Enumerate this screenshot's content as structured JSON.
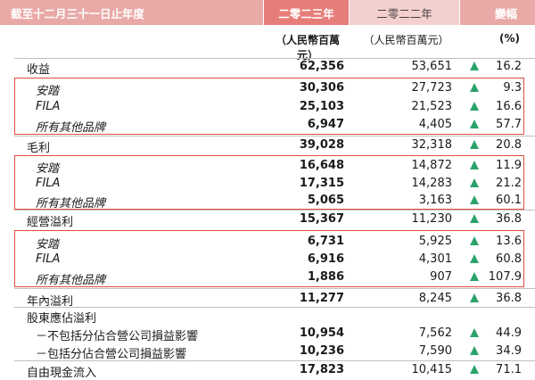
{
  "header": {
    "period_label": "截至十二月三十一日止年度",
    "col_2023": "二零二三年",
    "col_2022": "二零二二年",
    "col_change": "變幅"
  },
  "units": {
    "col_2023": "（人民幣百萬元）",
    "col_2022": "（人民幣百萬元）",
    "col_change": "(%)"
  },
  "rows": [
    {
      "label": "收益",
      "v2023": "62,356",
      "v2022": "53,651",
      "change": "16.2"
    },
    {
      "label": "安踏",
      "v2023": "30,306",
      "v2022": "27,723",
      "change": "9.3"
    },
    {
      "label": "FILA",
      "v2023": "25,103",
      "v2022": "21,523",
      "change": "16.6"
    },
    {
      "label": "所有其他品牌",
      "v2023": "6,947",
      "v2022": "4,405",
      "change": "57.7"
    },
    {
      "label": "毛利",
      "v2023": "39,028",
      "v2022": "32,318",
      "change": "20.8"
    },
    {
      "label": "安踏",
      "v2023": "16,648",
      "v2022": "14,872",
      "change": "11.9"
    },
    {
      "label": "FILA",
      "v2023": "17,315",
      "v2022": "14,283",
      "change": "21.2"
    },
    {
      "label": "所有其他品牌",
      "v2023": "5,065",
      "v2022": "3,163",
      "change": "60.1"
    },
    {
      "label": "經營溢利",
      "v2023": "15,367",
      "v2022": "11,230",
      "change": "36.8"
    },
    {
      "label": "安踏",
      "v2023": "6,731",
      "v2022": "5,925",
      "change": "13.6"
    },
    {
      "label": "FILA",
      "v2023": "6,916",
      "v2022": "4,301",
      "change": "60.8"
    },
    {
      "label": "所有其他品牌",
      "v2023": "1,886",
      "v2022": "907",
      "change": "107.9"
    },
    {
      "label": "年內溢利",
      "v2023": "11,277",
      "v2022": "8,245",
      "change": "36.8"
    },
    {
      "label": "股東應佔溢利",
      "v2023": "",
      "v2022": "",
      "change": ""
    },
    {
      "label": "－不包括分佔合營公司損益影響",
      "v2023": "10,954",
      "v2022": "7,562",
      "change": "44.9"
    },
    {
      "label": "－包括分佔合營公司損益影響",
      "v2023": "10,236",
      "v2022": "7,590",
      "change": "34.9"
    },
    {
      "label": "自由現金流入",
      "v2023": "17,823",
      "v2022": "10,415",
      "change": "71.1"
    }
  ],
  "colors": {
    "increase_arrow": "#2aa36b",
    "highlight_box": "#e24a42",
    "header_accent": "#e67d79"
  },
  "icons": {
    "increase": "triangle-up-icon"
  }
}
